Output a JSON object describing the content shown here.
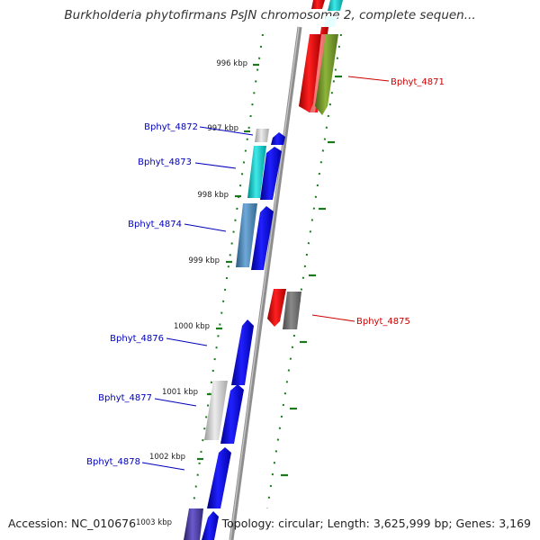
{
  "title": "Burkholderia phytofirmans PsJN chromosome 2, complete sequen...",
  "footer": {
    "accession": "Accession: NC_010676",
    "topology": "Topology: circular; Length: 3,625,999 bp; Genes: 3,169"
  },
  "colors": {
    "forward_label": "#0000bb",
    "reverse_label": "#cc0000",
    "tick": "#1a7a1a",
    "backbone": "#888888",
    "gene_blue": "#0000ee",
    "gene_red": "#ee0000",
    "gene_olive": "#6b8e23",
    "gene_cyan": "#00cccc",
    "gene_gray": "#999999",
    "gene_steel": "#4682b4",
    "gene_indigo": "#483d8b"
  },
  "scale_labels": [
    {
      "text": "996 kbp"
    },
    {
      "text": "997 kbp"
    },
    {
      "text": "998 kbp"
    },
    {
      "text": "999 kbp"
    },
    {
      "text": "1000 kbp"
    },
    {
      "text": "1001 kbp"
    },
    {
      "text": "1002 kbp"
    },
    {
      "text": "1003 kbp"
    }
  ],
  "gene_labels": [
    {
      "text": "Bphyt_4871",
      "strand": "reverse"
    },
    {
      "text": "Bphyt_4872",
      "strand": "forward"
    },
    {
      "text": "Bphyt_4873",
      "strand": "forward"
    },
    {
      "text": "Bphyt_4874",
      "strand": "forward"
    },
    {
      "text": "Bphyt_4875",
      "strand": "reverse"
    },
    {
      "text": "Bphyt_4876",
      "strand": "forward"
    },
    {
      "text": "Bphyt_4877",
      "strand": "forward"
    },
    {
      "text": "Bphyt_4878",
      "strand": "forward"
    }
  ]
}
